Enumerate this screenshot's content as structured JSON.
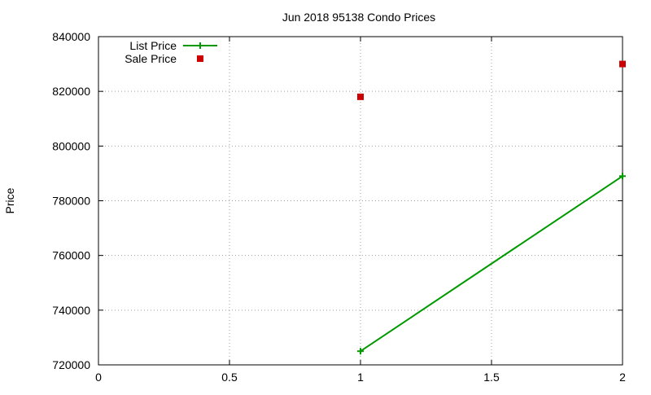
{
  "chart_data": {
    "type": "line",
    "title": "Jun 2018 95138 Condo Prices",
    "xlabel": "",
    "ylabel": "Price",
    "xlim": [
      0,
      2
    ],
    "ylim": [
      720000,
      840000
    ],
    "xticks": [
      0,
      0.5,
      1,
      1.5,
      2
    ],
    "xtick_labels": [
      "0",
      "0.5",
      "1",
      "1.5",
      "2"
    ],
    "yticks": [
      720000,
      740000,
      760000,
      780000,
      800000,
      820000,
      840000
    ],
    "ytick_labels": [
      "720000",
      "740000",
      "760000",
      "780000",
      "800000",
      "820000",
      "840000"
    ],
    "grid": true,
    "legend_position": "top-left",
    "series": [
      {
        "name": "List Price",
        "style": "line+cross",
        "color": "#009900",
        "x": [
          1,
          2
        ],
        "y": [
          725000,
          789000
        ]
      },
      {
        "name": "Sale Price",
        "style": "square",
        "color": "#cc0000",
        "x": [
          1,
          2
        ],
        "y": [
          818000,
          830000
        ]
      }
    ]
  }
}
